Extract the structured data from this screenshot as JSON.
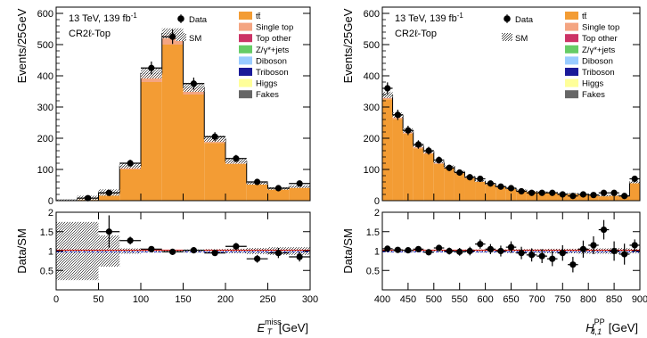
{
  "chart_data": [
    {
      "type": "histogram",
      "info": {
        "energy": "13 TeV, 139 fb",
        "lumi_sup": "-1",
        "region": "CR2ℓ-Top"
      },
      "xlabel": {
        "main": "E",
        "sub": "T",
        "sup": "miss",
        "unit": "[GeV]"
      },
      "ylabel_top": "Events/25GeV",
      "ylabel_bottom": "Data/SM",
      "xlim": [
        0,
        300
      ],
      "ylim_top": [
        0,
        620
      ],
      "ylim_bottom": [
        0,
        2
      ],
      "x_ticks": [
        0,
        50,
        100,
        150,
        200,
        250,
        300
      ],
      "y_ticks_top": [
        0,
        100,
        200,
        300,
        400,
        500,
        600
      ],
      "y_ticks_bottom": [
        0.5,
        1,
        1.5,
        2
      ],
      "bin_edges": [
        0,
        25,
        50,
        75,
        100,
        125,
        150,
        175,
        200,
        225,
        250,
        275,
        300
      ],
      "series": [
        {
          "name": "tt̄",
          "color": "#f39c34",
          "values": [
            2,
            8,
            22,
            100,
            380,
            500,
            340,
            185,
            118,
            52,
            37,
            42
          ]
        },
        {
          "name": "Single top",
          "color": "#f4a582",
          "values": [
            0,
            1,
            3,
            8,
            22,
            30,
            18,
            10,
            6,
            3,
            2,
            2
          ]
        },
        {
          "name": "Top other",
          "color": "#cc3366",
          "values": [
            0,
            0,
            0,
            1,
            2,
            2,
            2,
            1,
            1,
            1,
            0,
            1
          ]
        },
        {
          "name": "Z/γ*+jets",
          "color": "#66cc66",
          "values": [
            0,
            0,
            0,
            1,
            1,
            1,
            1,
            1,
            0,
            0,
            0,
            0
          ]
        },
        {
          "name": "Diboson",
          "color": "#99ccff",
          "values": [
            0,
            0,
            0,
            0,
            1,
            1,
            1,
            0,
            0,
            0,
            0,
            0
          ]
        },
        {
          "name": "Triboson",
          "color": "#1a1a99",
          "values": [
            0,
            0,
            0,
            0,
            0,
            0,
            0,
            0,
            0,
            0,
            0,
            0
          ]
        },
        {
          "name": "Higgs",
          "color": "#ffff99",
          "values": [
            0,
            0,
            0,
            0,
            0,
            0,
            0,
            0,
            0,
            0,
            0,
            0
          ]
        },
        {
          "name": "Fakes",
          "color": "#666666",
          "values": [
            0,
            0,
            1,
            1,
            2,
            2,
            1,
            1,
            1,
            0,
            0,
            0
          ]
        }
      ],
      "data": {
        "name": "Data",
        "x": [
          37.5,
          62.5,
          87.5,
          112.5,
          137.5,
          162.5,
          187.5,
          212.5,
          237.5,
          262.5,
          287.5
        ],
        "y": [
          8,
          25,
          120,
          425,
          525,
          375,
          205,
          135,
          60,
          40,
          55
        ]
      },
      "sm_label": "SM",
      "ratio": {
        "x": [
          62.5,
          87.5,
          112.5,
          137.5,
          162.5,
          187.5,
          212.5,
          237.5,
          262.5,
          287.5
        ],
        "y": [
          1.5,
          1.27,
          1.05,
          0.98,
          1.02,
          0.95,
          1.12,
          0.8,
          0.95,
          0.85
        ],
        "yerr": [
          0.42,
          0.1,
          0.05,
          0.04,
          0.05,
          0.06,
          0.09,
          0.1,
          0.13,
          0.12
        ]
      },
      "sm_band_rel": [
        0.75,
        0.75,
        0.4,
        0.07,
        0.04,
        0.03,
        0.04,
        0.05,
        0.06,
        0.08,
        0.1,
        0.1
      ]
    },
    {
      "type": "histogram",
      "info": {
        "energy": "13 TeV, 139 fb",
        "lumi_sup": "-1",
        "region": "CR2ℓ-Top"
      },
      "xlabel": {
        "main": "H",
        "sub": "4,1",
        "sup": "PP",
        "unit": "[GeV]"
      },
      "ylabel_top": "Events/25GeV",
      "ylabel_bottom": "Data/SM",
      "xlim": [
        400,
        900
      ],
      "ylim_top": [
        0,
        620
      ],
      "ylim_bottom": [
        0,
        2
      ],
      "x_ticks": [
        400,
        450,
        500,
        550,
        600,
        650,
        700,
        750,
        800,
        850,
        900
      ],
      "y_ticks_top": [
        0,
        100,
        200,
        300,
        400,
        500,
        600
      ],
      "y_ticks_bottom": [
        0.5,
        1,
        1.5,
        2
      ],
      "bin_edges": [
        400,
        420,
        440,
        460,
        480,
        500,
        520,
        540,
        560,
        580,
        600,
        620,
        640,
        660,
        680,
        700,
        720,
        740,
        760,
        780,
        800,
        820,
        840,
        860,
        880,
        900
      ],
      "series": [
        {
          "name": "tt̄",
          "color": "#f39c34",
          "values": [
            325,
            262,
            215,
            168,
            150,
            118,
            104,
            88,
            72,
            60,
            52,
            44,
            38,
            33,
            29,
            27,
            25,
            22,
            22,
            19,
            17,
            15,
            16,
            14,
            56
          ]
        },
        {
          "name": "Single top",
          "color": "#f4a582",
          "values": [
            8,
            6,
            5,
            4,
            4,
            3,
            3,
            2,
            2,
            2,
            2,
            1,
            1,
            1,
            1,
            1,
            1,
            1,
            1,
            1,
            1,
            1,
            1,
            1,
            2
          ]
        },
        {
          "name": "Top other",
          "color": "#cc3366",
          "values": [
            1,
            1,
            1,
            1,
            1,
            1,
            1,
            1,
            0,
            0,
            0,
            0,
            0,
            0,
            0,
            0,
            0,
            0,
            0,
            0,
            0,
            0,
            0,
            0,
            0
          ]
        },
        {
          "name": "Z/γ*+jets",
          "color": "#66cc66",
          "values": [
            2,
            2,
            1,
            1,
            1,
            1,
            1,
            1,
            1,
            0,
            0,
            0,
            0,
            0,
            0,
            0,
            0,
            0,
            0,
            0,
            0,
            0,
            0,
            0,
            0
          ]
        },
        {
          "name": "Diboson",
          "color": "#99ccff",
          "values": [
            1,
            1,
            1,
            1,
            0,
            0,
            0,
            0,
            0,
            0,
            0,
            0,
            0,
            0,
            0,
            0,
            0,
            0,
            0,
            0,
            0,
            0,
            0,
            0,
            0
          ]
        },
        {
          "name": "Triboson",
          "color": "#1a1a99",
          "values": [
            0,
            0,
            0,
            0,
            0,
            0,
            0,
            0,
            0,
            0,
            0,
            0,
            0,
            0,
            0,
            0,
            0,
            0,
            0,
            0,
            0,
            0,
            0,
            0,
            0
          ]
        },
        {
          "name": "Higgs",
          "color": "#ffff99",
          "values": [
            0,
            0,
            0,
            0,
            0,
            0,
            0,
            0,
            0,
            0,
            0,
            0,
            0,
            0,
            0,
            0,
            0,
            0,
            0,
            0,
            0,
            0,
            0,
            0,
            0
          ]
        },
        {
          "name": "Fakes",
          "color": "#666666",
          "values": [
            2,
            2,
            2,
            1,
            1,
            1,
            1,
            1,
            1,
            1,
            0,
            0,
            0,
            0,
            0,
            0,
            0,
            0,
            0,
            0,
            0,
            0,
            0,
            0,
            1
          ]
        }
      ],
      "data": {
        "name": "Data",
        "x": [
          410,
          430,
          450,
          470,
          490,
          510,
          530,
          550,
          570,
          590,
          610,
          630,
          650,
          670,
          690,
          710,
          730,
          750,
          770,
          790,
          810,
          830,
          850,
          870,
          890
        ],
        "y": [
          360,
          275,
          225,
          180,
          160,
          130,
          105,
          90,
          75,
          70,
          55,
          45,
          40,
          30,
          25,
          25,
          25,
          20,
          15,
          20,
          18,
          25,
          25,
          15,
          70
        ]
      },
      "sm_label": "SM",
      "ratio": {
        "x": [
          410,
          430,
          450,
          470,
          490,
          510,
          530,
          550,
          570,
          590,
          610,
          630,
          650,
          670,
          690,
          710,
          730,
          750,
          770,
          790,
          810,
          830,
          850,
          870,
          890
        ],
        "y": [
          1.06,
          1.03,
          1.02,
          1.05,
          0.97,
          1.08,
          1.0,
          0.98,
          1.0,
          1.18,
          1.05,
          1.0,
          1.1,
          0.95,
          0.9,
          0.87,
          0.8,
          0.95,
          0.65,
          1.05,
          1.15,
          1.55,
          1.0,
          0.92,
          1.15
        ],
        "yerr": [
          0.05,
          0.06,
          0.07,
          0.07,
          0.08,
          0.08,
          0.09,
          0.1,
          0.11,
          0.12,
          0.13,
          0.14,
          0.15,
          0.16,
          0.17,
          0.18,
          0.19,
          0.2,
          0.2,
          0.22,
          0.23,
          0.25,
          0.25,
          0.27,
          0.15
        ]
      },
      "sm_band_rel": [
        0.03,
        0.03,
        0.03,
        0.03,
        0.03,
        0.03,
        0.03,
        0.03,
        0.04,
        0.04,
        0.04,
        0.04,
        0.05,
        0.05,
        0.05,
        0.05,
        0.06,
        0.06,
        0.06,
        0.07,
        0.07,
        0.07,
        0.08,
        0.08,
        0.06
      ]
    }
  ]
}
